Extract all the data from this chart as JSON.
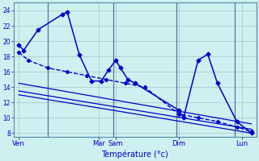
{
  "title": "Température (°c)",
  "bg_color": "#cdf0f0",
  "grid_color": "#a0c8c8",
  "line_color": "#0000cc",
  "fig_width": 3.2,
  "fig_height": 2.0,
  "dpi": 100,
  "xlim": [
    0,
    100
  ],
  "ylim": [
    7.5,
    25
  ],
  "yticks": [
    8,
    10,
    12,
    14,
    16,
    18,
    20,
    22,
    24
  ],
  "day_labels": [
    "Ven",
    "Mar",
    "Sam",
    "Dim",
    "Lun"
  ],
  "day_positions": [
    2,
    35,
    42,
    68,
    94
  ],
  "day_vlines": [
    14,
    41,
    67,
    91
  ],
  "series1_x": [
    2,
    4,
    10,
    20,
    22,
    27,
    32,
    36,
    39,
    42,
    44,
    47,
    50,
    68,
    70,
    76,
    80,
    84,
    92,
    98
  ],
  "series1_y": [
    19.5,
    18.8,
    21.5,
    23.5,
    23.8,
    18.2,
    14.8,
    14.8,
    16.2,
    17.5,
    16.5,
    15.0,
    14.5,
    11.0,
    10.0,
    17.5,
    18.3,
    14.5,
    9.5,
    8.0
  ],
  "series2_x": [
    2,
    6,
    14,
    22,
    30,
    38,
    46,
    54,
    68,
    76,
    84,
    92,
    98
  ],
  "series2_y": [
    18.5,
    17.5,
    16.5,
    16.0,
    15.5,
    15.0,
    14.5,
    14.0,
    10.5,
    10.0,
    9.5,
    8.8,
    8.2
  ],
  "series3_x": [
    2,
    98
  ],
  "series3_y": [
    14.5,
    9.2
  ],
  "series4_x": [
    2,
    98
  ],
  "series4_y": [
    13.5,
    8.5
  ],
  "series5_x": [
    2,
    98
  ],
  "series5_y": [
    13.0,
    8.0
  ]
}
